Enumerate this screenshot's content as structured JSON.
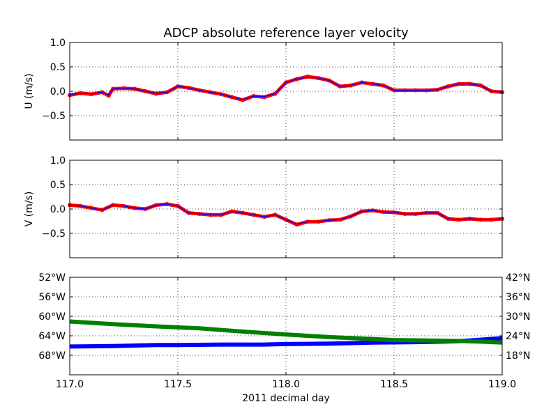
{
  "figure": {
    "title": "ADCP absolute reference layer velocity",
    "xlabel": "2011 decimal day"
  },
  "colors": {
    "measured": "#ff0000",
    "smoothed": "#0000ff",
    "longitude": "#0000ff",
    "latitude": "#008000"
  },
  "chart_data": [
    {
      "type": "scatter",
      "panel": "U",
      "ylabel": "U (m/s)",
      "xlim": [
        117.0,
        119.0
      ],
      "ylim": [
        -1.0,
        1.0
      ],
      "yticks": [
        0.0,
        0.5,
        1.0
      ],
      "ytick_labels": [
        "0.0",
        "0.5",
        "1.0"
      ],
      "grid": true,
      "series": [
        {
          "role": "measured",
          "style": "red dots",
          "x": [
            117.0,
            117.05,
            117.1,
            117.15,
            117.18,
            117.2,
            117.25,
            117.3,
            117.35,
            117.4,
            117.45,
            117.5,
            117.55,
            117.6,
            117.65,
            117.7,
            117.75,
            117.8,
            117.85,
            117.9,
            117.95,
            118.0,
            118.05,
            118.1,
            118.15,
            118.2,
            118.25,
            118.3,
            118.35,
            118.4,
            118.45,
            118.5,
            118.55,
            118.6,
            118.65,
            118.7,
            118.75,
            118.8,
            118.85,
            118.9,
            118.95,
            119.0
          ],
          "y": [
            -0.08,
            -0.04,
            -0.06,
            -0.02,
            -0.09,
            0.05,
            0.06,
            0.05,
            0.0,
            -0.05,
            -0.02,
            0.1,
            0.07,
            0.02,
            -0.02,
            -0.06,
            -0.12,
            -0.18,
            -0.1,
            -0.12,
            -0.05,
            0.18,
            0.25,
            0.3,
            0.27,
            0.22,
            0.1,
            0.12,
            0.18,
            0.15,
            0.12,
            0.02,
            0.02,
            0.02,
            0.02,
            0.03,
            0.1,
            0.15,
            0.15,
            0.12,
            0.0,
            -0.02
          ]
        },
        {
          "role": "smoothed",
          "style": "blue line",
          "x": [
            117.0,
            117.05,
            117.1,
            117.15,
            117.18,
            117.2,
            117.25,
            117.3,
            117.35,
            117.4,
            117.45,
            117.5,
            117.55,
            117.6,
            117.65,
            117.7,
            117.75,
            117.8,
            117.85,
            117.9,
            117.95,
            118.0,
            118.05,
            118.1,
            118.15,
            118.2,
            118.25,
            118.3,
            118.35,
            118.4,
            118.45,
            118.5,
            118.55,
            118.6,
            118.65,
            118.7,
            118.75,
            118.8,
            118.85,
            118.9,
            118.95,
            119.0
          ],
          "y": [
            -0.07,
            -0.04,
            -0.05,
            -0.02,
            -0.08,
            0.05,
            0.06,
            0.05,
            0.0,
            -0.04,
            -0.02,
            0.1,
            0.07,
            0.02,
            -0.02,
            -0.06,
            -0.12,
            -0.17,
            -0.1,
            -0.11,
            -0.05,
            0.18,
            0.25,
            0.29,
            0.27,
            0.22,
            0.1,
            0.12,
            0.18,
            0.15,
            0.12,
            0.02,
            0.02,
            0.02,
            0.02,
            0.03,
            0.1,
            0.15,
            0.15,
            0.12,
            0.0,
            -0.02
          ]
        }
      ]
    },
    {
      "type": "scatter",
      "panel": "V",
      "ylabel": "V (m/s)",
      "xlim": [
        117.0,
        119.0
      ],
      "ylim": [
        -1.0,
        1.0
      ],
      "yticks": [
        0.0,
        0.5,
        1.0
      ],
      "ytick_labels": [
        "0.0",
        "0.5",
        "1.0"
      ],
      "grid": true,
      "series": [
        {
          "role": "measured",
          "style": "red dots",
          "x": [
            117.0,
            117.05,
            117.1,
            117.15,
            117.2,
            117.25,
            117.3,
            117.35,
            117.4,
            117.45,
            117.5,
            117.55,
            117.6,
            117.65,
            117.7,
            117.75,
            117.8,
            117.85,
            117.9,
            117.95,
            118.0,
            118.05,
            118.1,
            118.15,
            118.2,
            118.25,
            118.3,
            118.35,
            118.4,
            118.45,
            118.5,
            118.55,
            118.6,
            118.65,
            118.7,
            118.75,
            118.8,
            118.85,
            118.9,
            118.95,
            119.0
          ],
          "y": [
            0.08,
            0.06,
            0.02,
            -0.02,
            0.08,
            0.06,
            0.02,
            0.0,
            0.08,
            0.1,
            0.06,
            -0.08,
            -0.1,
            -0.12,
            -0.12,
            -0.05,
            -0.08,
            -0.12,
            -0.16,
            -0.12,
            -0.22,
            -0.32,
            -0.26,
            -0.26,
            -0.23,
            -0.22,
            -0.15,
            -0.05,
            -0.03,
            -0.06,
            -0.07,
            -0.1,
            -0.1,
            -0.08,
            -0.08,
            -0.2,
            -0.22,
            -0.2,
            -0.22,
            -0.22,
            -0.2
          ]
        },
        {
          "role": "smoothed",
          "style": "blue line",
          "x": [
            117.0,
            117.05,
            117.1,
            117.15,
            117.2,
            117.25,
            117.3,
            117.35,
            117.4,
            117.45,
            117.5,
            117.55,
            117.6,
            117.65,
            117.7,
            117.75,
            117.8,
            117.85,
            117.9,
            117.95,
            118.0,
            118.05,
            118.1,
            118.15,
            118.2,
            118.25,
            118.3,
            118.35,
            118.4,
            118.45,
            118.5,
            118.55,
            118.6,
            118.65,
            118.7,
            118.75,
            118.8,
            118.85,
            118.9,
            118.95,
            119.0
          ],
          "y": [
            0.08,
            0.06,
            0.02,
            -0.02,
            0.08,
            0.06,
            0.02,
            0.0,
            0.08,
            0.1,
            0.06,
            -0.08,
            -0.1,
            -0.12,
            -0.12,
            -0.05,
            -0.08,
            -0.12,
            -0.16,
            -0.12,
            -0.22,
            -0.31,
            -0.26,
            -0.26,
            -0.23,
            -0.22,
            -0.15,
            -0.05,
            -0.03,
            -0.06,
            -0.07,
            -0.1,
            -0.1,
            -0.08,
            -0.08,
            -0.2,
            -0.22,
            -0.2,
            -0.22,
            -0.22,
            -0.2
          ]
        }
      ]
    },
    {
      "type": "line",
      "panel": "position",
      "xlim": [
        117.0,
        119.0
      ],
      "xticks": [
        117.0,
        117.5,
        118.0,
        118.5,
        119.0
      ],
      "xtick_labels": [
        "117.0",
        "117.5",
        "118.0",
        "118.5",
        "119.0"
      ],
      "grid": true,
      "left_axis": {
        "quantity": "longitude",
        "ylim": [
          -72,
          -52
        ],
        "ticks": [
          -52,
          -56,
          -60,
          -64,
          -68
        ],
        "tick_labels": [
          "52°W",
          "56°W",
          "60°W",
          "64°W",
          "68°W"
        ]
      },
      "right_axis": {
        "quantity": "latitude",
        "ylim": [
          12,
          42
        ],
        "ticks": [
          42,
          36,
          30,
          24,
          18
        ],
        "tick_labels": [
          "42°N",
          "36°N",
          "30°N",
          "24°N",
          "18°N"
        ]
      },
      "series": [
        {
          "role": "longitude",
          "axis": "left",
          "x": [
            117.0,
            117.2,
            117.4,
            117.5,
            117.7,
            117.9,
            118.0,
            118.2,
            118.4,
            118.6,
            118.8,
            118.9,
            119.0
          ],
          "y": [
            -66.2,
            -66.1,
            -65.9,
            -65.9,
            -65.8,
            -65.8,
            -65.7,
            -65.6,
            -65.4,
            -65.3,
            -65.1,
            -64.8,
            -64.5
          ]
        },
        {
          "role": "latitude",
          "axis": "right",
          "x": [
            117.0,
            117.2,
            117.4,
            117.6,
            117.8,
            118.0,
            118.2,
            118.4,
            118.5,
            118.6,
            118.8,
            118.9,
            119.0
          ],
          "y": [
            28.4,
            27.6,
            26.9,
            26.3,
            25.3,
            24.4,
            23.6,
            23.0,
            22.7,
            22.6,
            22.4,
            22.2,
            21.9
          ]
        }
      ]
    }
  ]
}
